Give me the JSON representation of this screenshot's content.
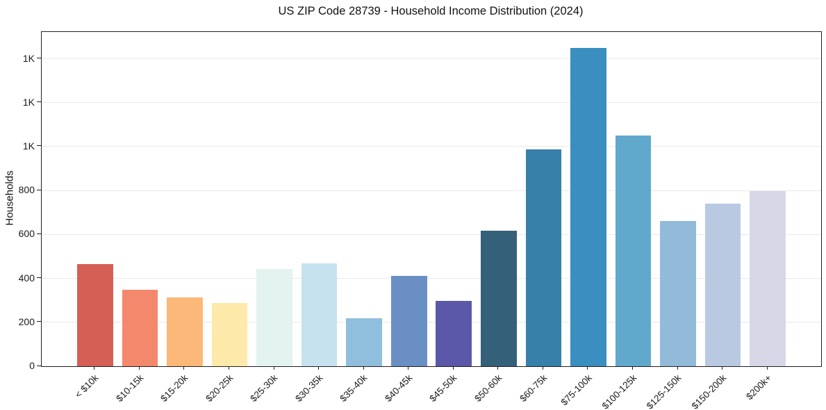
{
  "chart_data": {
    "type": "bar",
    "title": "US ZIP Code 28739 - Household Income Distribution (2024)",
    "xlabel": "",
    "ylabel": "Households",
    "categories": [
      "< $10k",
      "$10-15k",
      "$15-20k",
      "$20-25k",
      "$25-30k",
      "$30-35k",
      "$35-40k",
      "$40-45k",
      "$45-50k",
      "$50-60k",
      "$60-75k",
      "$75-100k",
      "$100-125k",
      "$125-150k",
      "$150-200k",
      "$200k+"
    ],
    "values": [
      466,
      347,
      314,
      287,
      443,
      469,
      219,
      411,
      296,
      618,
      988,
      1450,
      1050,
      662,
      740,
      797
    ],
    "bar_colors": [
      "#d65f55",
      "#f4886d",
      "#fbb878",
      "#fde9a9",
      "#e2f3f0",
      "#c6e2ee",
      "#90bedd",
      "#6a8fc4",
      "#5b58a9",
      "#35607a",
      "#3780aa",
      "#3a8ec0",
      "#60a9cc",
      "#92bad9",
      "#bac9e2",
      "#d7d7e8"
    ],
    "ylim": [
      0,
      1522
    ],
    "yticks": {
      "values": [
        0,
        200,
        400,
        600,
        800,
        1000,
        1200,
        1400
      ],
      "labels": [
        "0",
        "200",
        "400",
        "600",
        "800",
        "1K",
        "1K",
        "1K"
      ]
    },
    "grid": "horizontal",
    "grid_color": "#e9e9ee",
    "spine_color": "#1f1f1f",
    "legend": "none",
    "xtick_rotation_deg": 45
  }
}
